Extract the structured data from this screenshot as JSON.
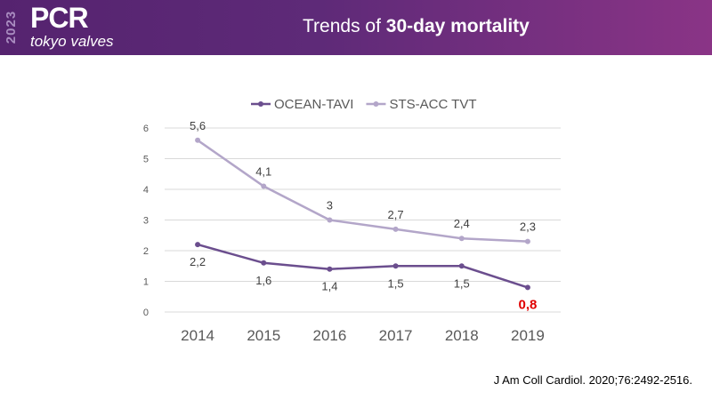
{
  "header": {
    "logo_year": "2023",
    "logo_brand": "PCR",
    "logo_subtitle": "tokyo valves",
    "title_prefix": "Trends of ",
    "title_bold": "30-day mortality"
  },
  "citation": "J Am Coll Cardiol. 2020;76:2492-2516.",
  "colors": {
    "ocean": "#6b4e8e",
    "sts": "#b3a6c9",
    "highlight": "#e00000",
    "header_start": "#55236f",
    "header_end": "#8a3486"
  },
  "chart_data": {
    "type": "line",
    "title": "Trends of 30-day mortality",
    "categories": [
      "2014",
      "2015",
      "2016",
      "2017",
      "2018",
      "2019"
    ],
    "series": [
      {
        "name": "OCEAN-TAVI",
        "values": [
          2.2,
          1.6,
          1.4,
          1.5,
          1.5,
          0.8
        ],
        "labels": [
          "2,2",
          "1,6",
          "1,4",
          "1,5",
          "1,5",
          "0,8"
        ]
      },
      {
        "name": "STS-ACC TVT",
        "values": [
          5.6,
          4.1,
          3,
          2.7,
          2.4,
          2.3
        ],
        "labels": [
          "5,6",
          "4,1",
          "3",
          "2,7",
          "2,4",
          "2,3"
        ]
      }
    ],
    "yticks": [
      "0",
      "1",
      "2",
      "3",
      "4",
      "5",
      "6"
    ],
    "ylim": [
      0,
      6
    ],
    "grid": true,
    "legend": "top-center",
    "xlabel": "",
    "ylabel": ""
  }
}
